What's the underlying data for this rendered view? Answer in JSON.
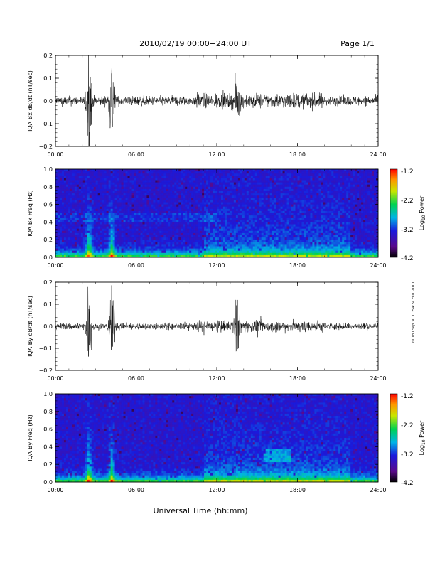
{
  "header": {
    "title": "2010/02/19  00:00−24:00 UT",
    "page": "Page 1/1"
  },
  "footer": {
    "xlabel": "Universal Time (hh:mm)",
    "stamp": "ssl Thu Sep 30 11:54:24 EDT 2010"
  },
  "colorbar": {
    "label_prefix": "Log",
    "label_sub": "10",
    "label_suffix": " Power",
    "ticks": [
      "-1.2",
      "-2.2",
      "-3.2",
      "-4.2"
    ],
    "range": [
      -4.2,
      -1.2
    ]
  },
  "chart_data": [
    {
      "type": "line",
      "ylabel": "IQA Bx dB/dt (nT/sec)",
      "ylim": [
        -0.2,
        0.2
      ],
      "yticks": [
        "0.2",
        "0.1",
        "0.0",
        "−0.1",
        "−0.2"
      ],
      "xticks": [
        "00:00",
        "06:00",
        "12:00",
        "18:00",
        "24:00"
      ],
      "xlim_hours": [
        0,
        24
      ],
      "baseline_amplitude": 0.02,
      "events": [
        {
          "t_hours": 2.5,
          "amplitude": 0.25
        },
        {
          "t_hours": 4.2,
          "amplitude": 0.22
        },
        {
          "t_hours": 13.5,
          "amplitude": 0.1
        }
      ]
    },
    {
      "type": "heatmap",
      "ylabel": "IQA Bx Freq (Hz)",
      "ylim": [
        0.0,
        1.0
      ],
      "yticks": [
        "1.0",
        "0.8",
        "0.6",
        "0.4",
        "0.2",
        "0.0"
      ],
      "xticks": [
        "00:00",
        "06:00",
        "12:00",
        "18:00",
        "24:00"
      ],
      "zlim": [
        -4.2,
        -1.2
      ]
    },
    {
      "type": "line",
      "ylabel": "IQA By dB/dt (nT/sec)",
      "ylim": [
        -0.2,
        0.2
      ],
      "yticks": [
        "0.2",
        "0.1",
        "0.0",
        "−0.1",
        "−0.2"
      ],
      "xticks": [
        "00:00",
        "06:00",
        "12:00",
        "18:00",
        "24:00"
      ],
      "xlim_hours": [
        0,
        24
      ],
      "baseline_amplitude": 0.015,
      "events": [
        {
          "t_hours": 2.5,
          "amplitude": 0.2
        },
        {
          "t_hours": 4.2,
          "amplitude": 0.2
        },
        {
          "t_hours": 13.5,
          "amplitude": 0.12
        }
      ]
    },
    {
      "type": "heatmap",
      "ylabel": "IQA By Freq (Hz)",
      "ylim": [
        0.0,
        1.0
      ],
      "yticks": [
        "1.0",
        "0.8",
        "0.6",
        "0.4",
        "0.2",
        "0.0"
      ],
      "xticks": [
        "00:00",
        "06:00",
        "12:00",
        "18:00",
        "24:00"
      ],
      "zlim": [
        -4.2,
        -1.2
      ]
    }
  ]
}
